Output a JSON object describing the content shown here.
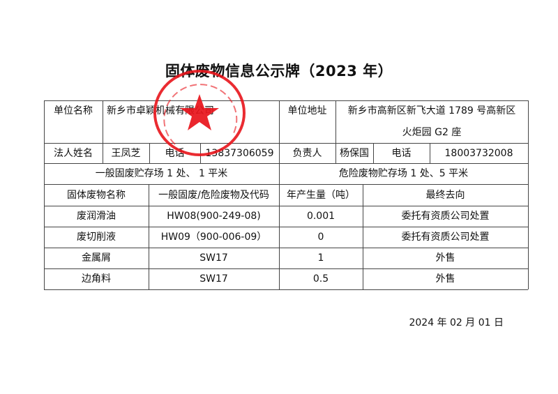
{
  "title": "固体废物信息公示牌（2023 年）",
  "info": {
    "unit_name_label": "单位名称",
    "unit_name": "新乡市卓颖机械有限公司",
    "unit_address_label": "单位地址",
    "unit_address_line1": "新乡市高新区新飞大道 1789 号高新区",
    "unit_address_line2": "火炬园 G2 座",
    "legal_person_label": "法人姓名",
    "legal_person": "王凤芝",
    "phone_label": "电话",
    "legal_phone": "13837306059",
    "manager_label": "负责人",
    "manager": "杨保国",
    "manager_phone_label": "电话",
    "manager_phone": "18003732008",
    "general_storage": "一般固废贮存场 1 处、 1 平米",
    "hazardous_storage": "危险废物贮存场 1 处、5 平米"
  },
  "table": {
    "headers": [
      "固体废物名称",
      "一般固废/危险废物及代码",
      "年产生量（吨）",
      "最终去向"
    ],
    "rows": [
      [
        "废润滑油",
        "HW08(900-249-08)",
        "0.001",
        "委托有资质公司处置"
      ],
      [
        "废切削液",
        "HW09（900-006-09）",
        "0",
        "委托有资质公司处置"
      ],
      [
        "金属屑",
        "SW17",
        "1",
        "外售"
      ],
      [
        "边角料",
        "SW17",
        "0.5",
        "外售"
      ]
    ]
  },
  "date": "2024 年  02  月  01  日",
  "stamp": {
    "text": "新乡市卓颖机械有限公司",
    "color": "#e8141b"
  }
}
